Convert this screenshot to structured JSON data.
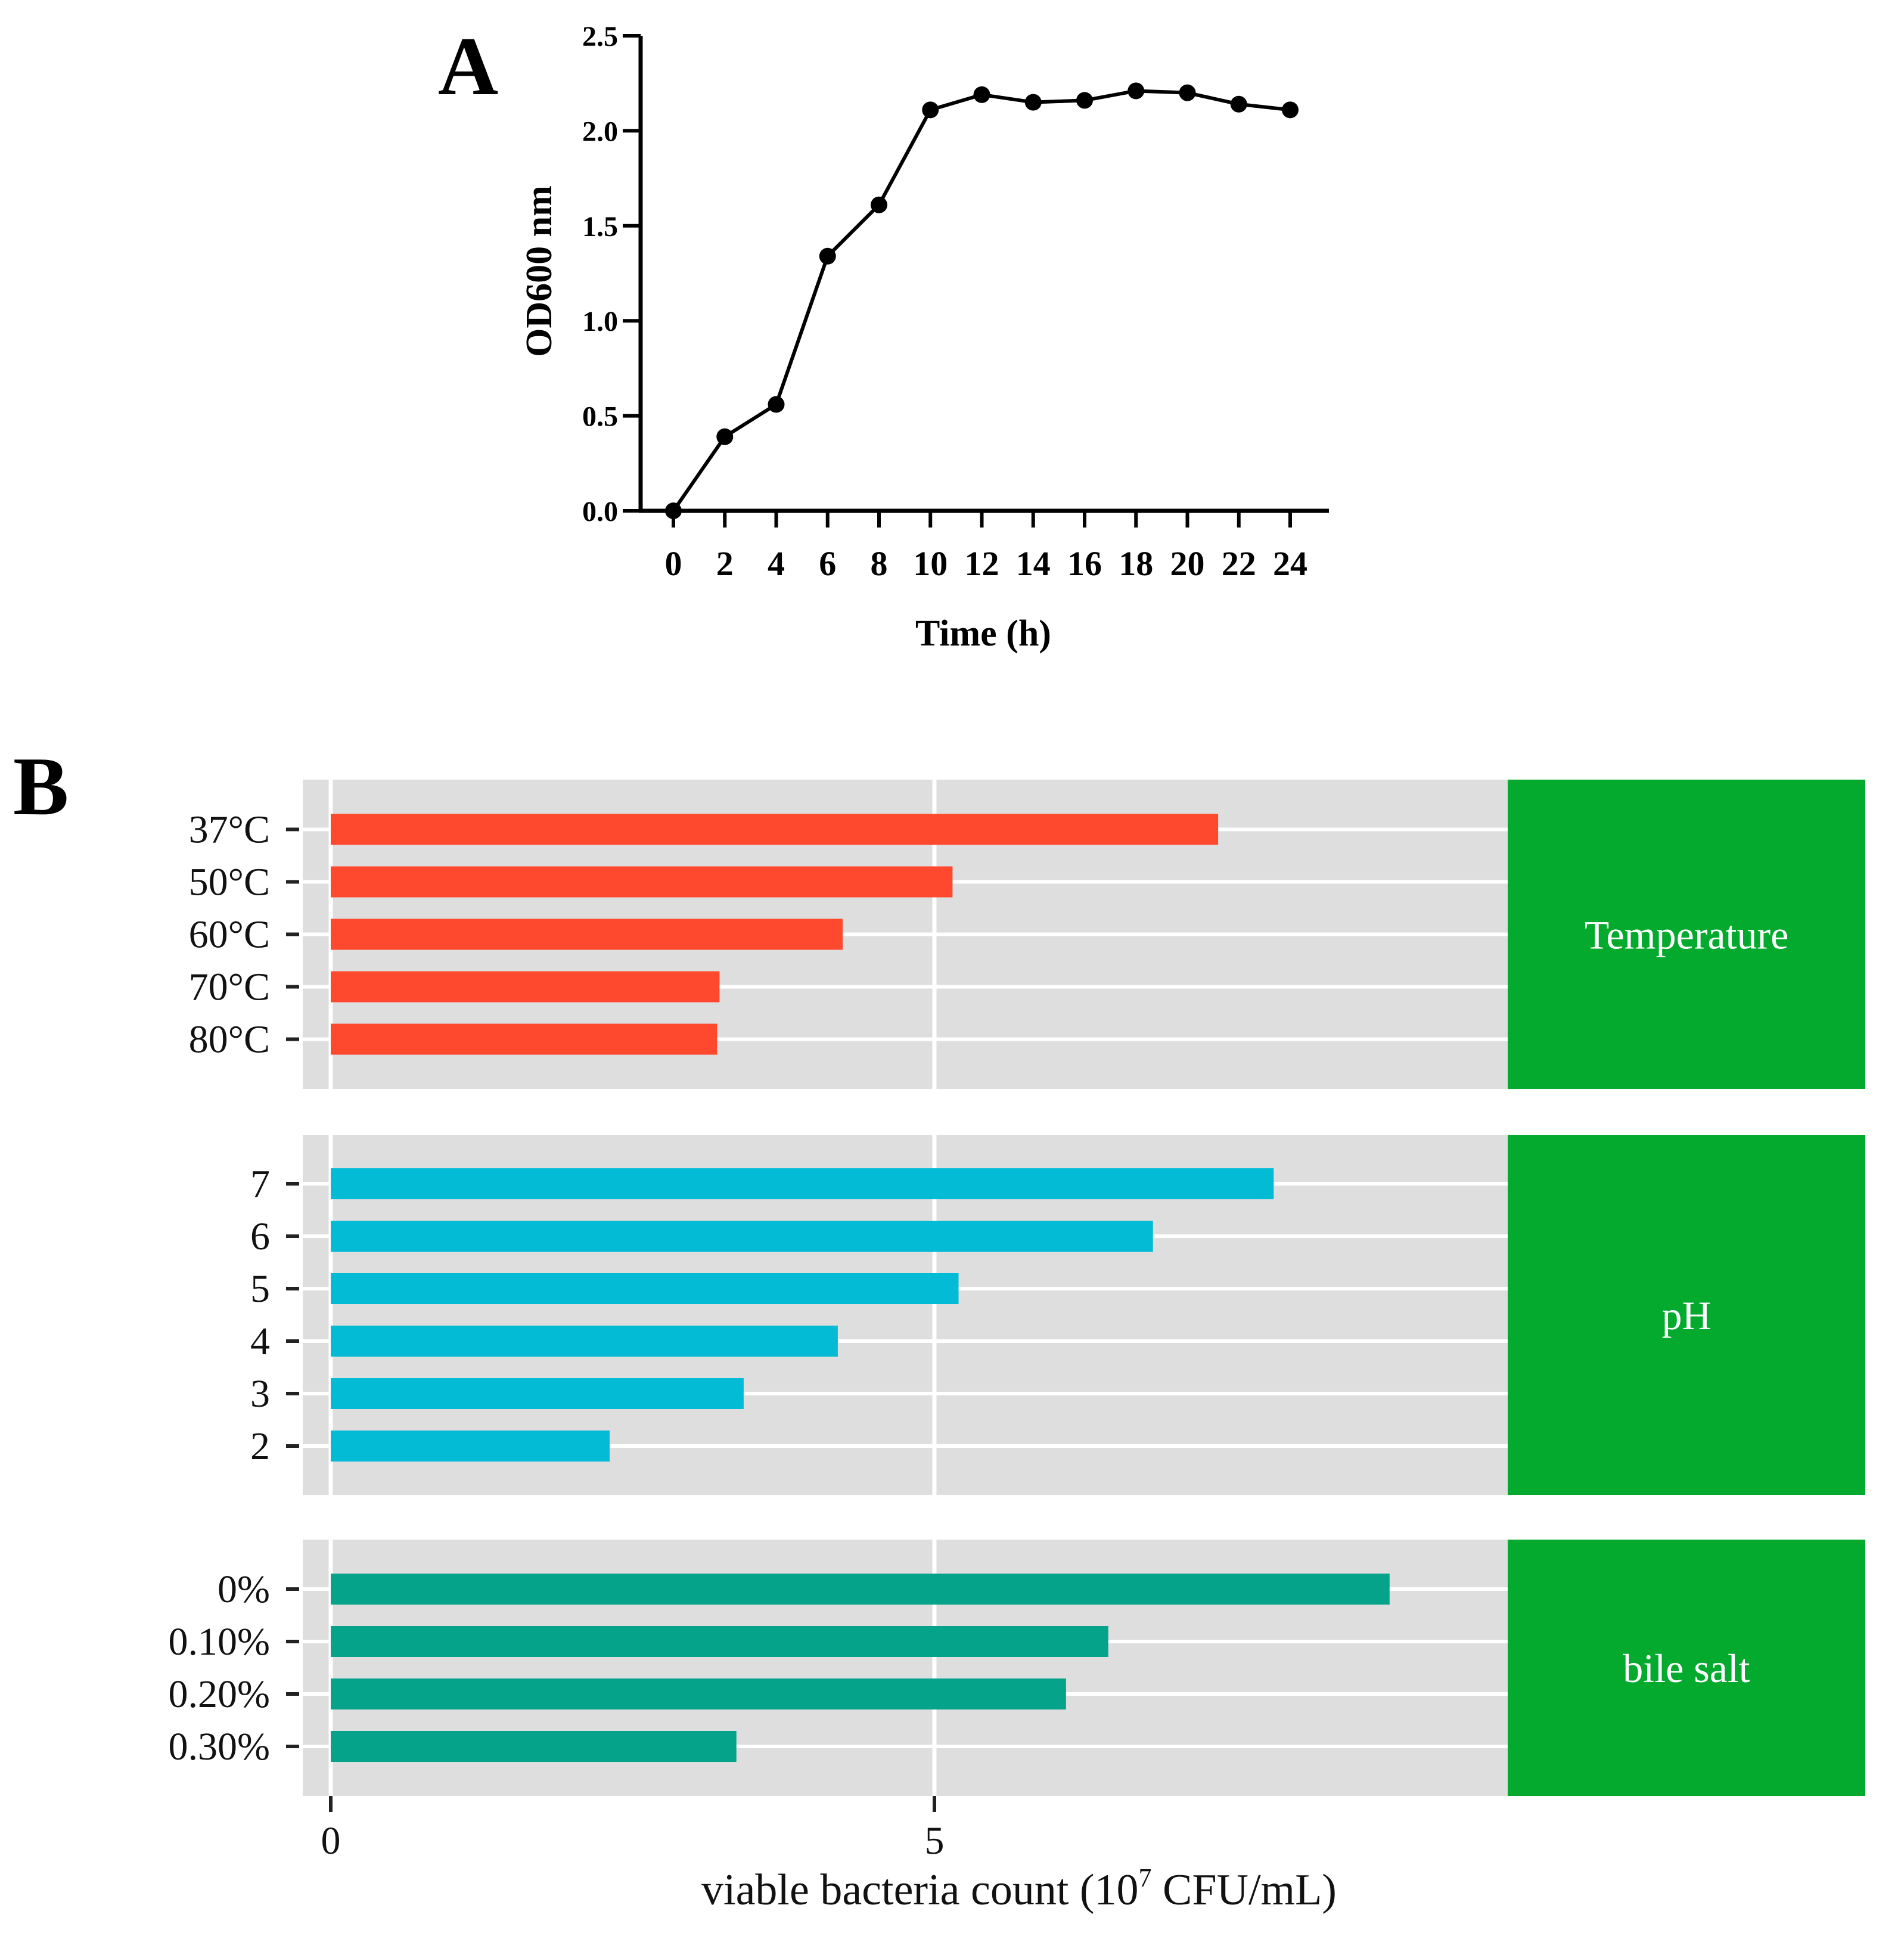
{
  "chart_data": [
    {
      "panel_label": "A",
      "type": "line",
      "title": "",
      "xlabel": "Time (h)",
      "ylabel": "OD600 nm",
      "x": [
        0,
        2,
        4,
        6,
        8,
        10,
        12,
        14,
        16,
        18,
        20,
        22,
        24
      ],
      "series": [
        {
          "name": "OD600",
          "values": [
            0.0,
            0.39,
            0.56,
            1.34,
            1.61,
            2.11,
            2.19,
            2.15,
            2.16,
            2.21,
            2.2,
            2.14,
            2.11
          ]
        }
      ],
      "xticks": [
        "0",
        "2",
        "4",
        "6",
        "8",
        "10",
        "12",
        "14",
        "16",
        "18",
        "20",
        "22",
        "24"
      ],
      "yticks": [
        "0.0",
        "0.5",
        "1.0",
        "1.5",
        "2.0",
        "2.5"
      ],
      "xlim": [
        0,
        24
      ],
      "ylim": [
        0,
        2.5
      ],
      "grid": false,
      "color": "#000000"
    },
    {
      "panel_label": "B",
      "type": "bar",
      "orientation": "horizontal",
      "xlabel_prefix": "viable bacteria count (10",
      "xlabel_exponent": "7",
      "xlabel_suffix": " CFU/mL)",
      "xlim": [
        0,
        9.8
      ],
      "xticks": [
        "0",
        "5"
      ],
      "grid": true,
      "strip_color": "#04aa2d",
      "panel_background": "#dedede",
      "facets": [
        {
          "name": "Temperature",
          "color": "#fe492e",
          "categories": [
            "37°C",
            "50°C",
            "60°C",
            "70°C",
            "80°C"
          ],
          "values": [
            7.35,
            5.15,
            4.24,
            3.22,
            3.2
          ]
        },
        {
          "name": "pH",
          "color": "#03bbd4",
          "categories": [
            "7",
            "6",
            "5",
            "4",
            "3",
            "2"
          ],
          "values": [
            7.81,
            6.81,
            5.2,
            4.2,
            3.42,
            2.31
          ]
        },
        {
          "name": "bile salt",
          "color": "#04a38a",
          "categories": [
            "0%",
            "0.10%",
            "0.20%",
            "0.30%"
          ],
          "values": [
            8.77,
            6.44,
            6.09,
            3.36
          ]
        }
      ]
    }
  ]
}
